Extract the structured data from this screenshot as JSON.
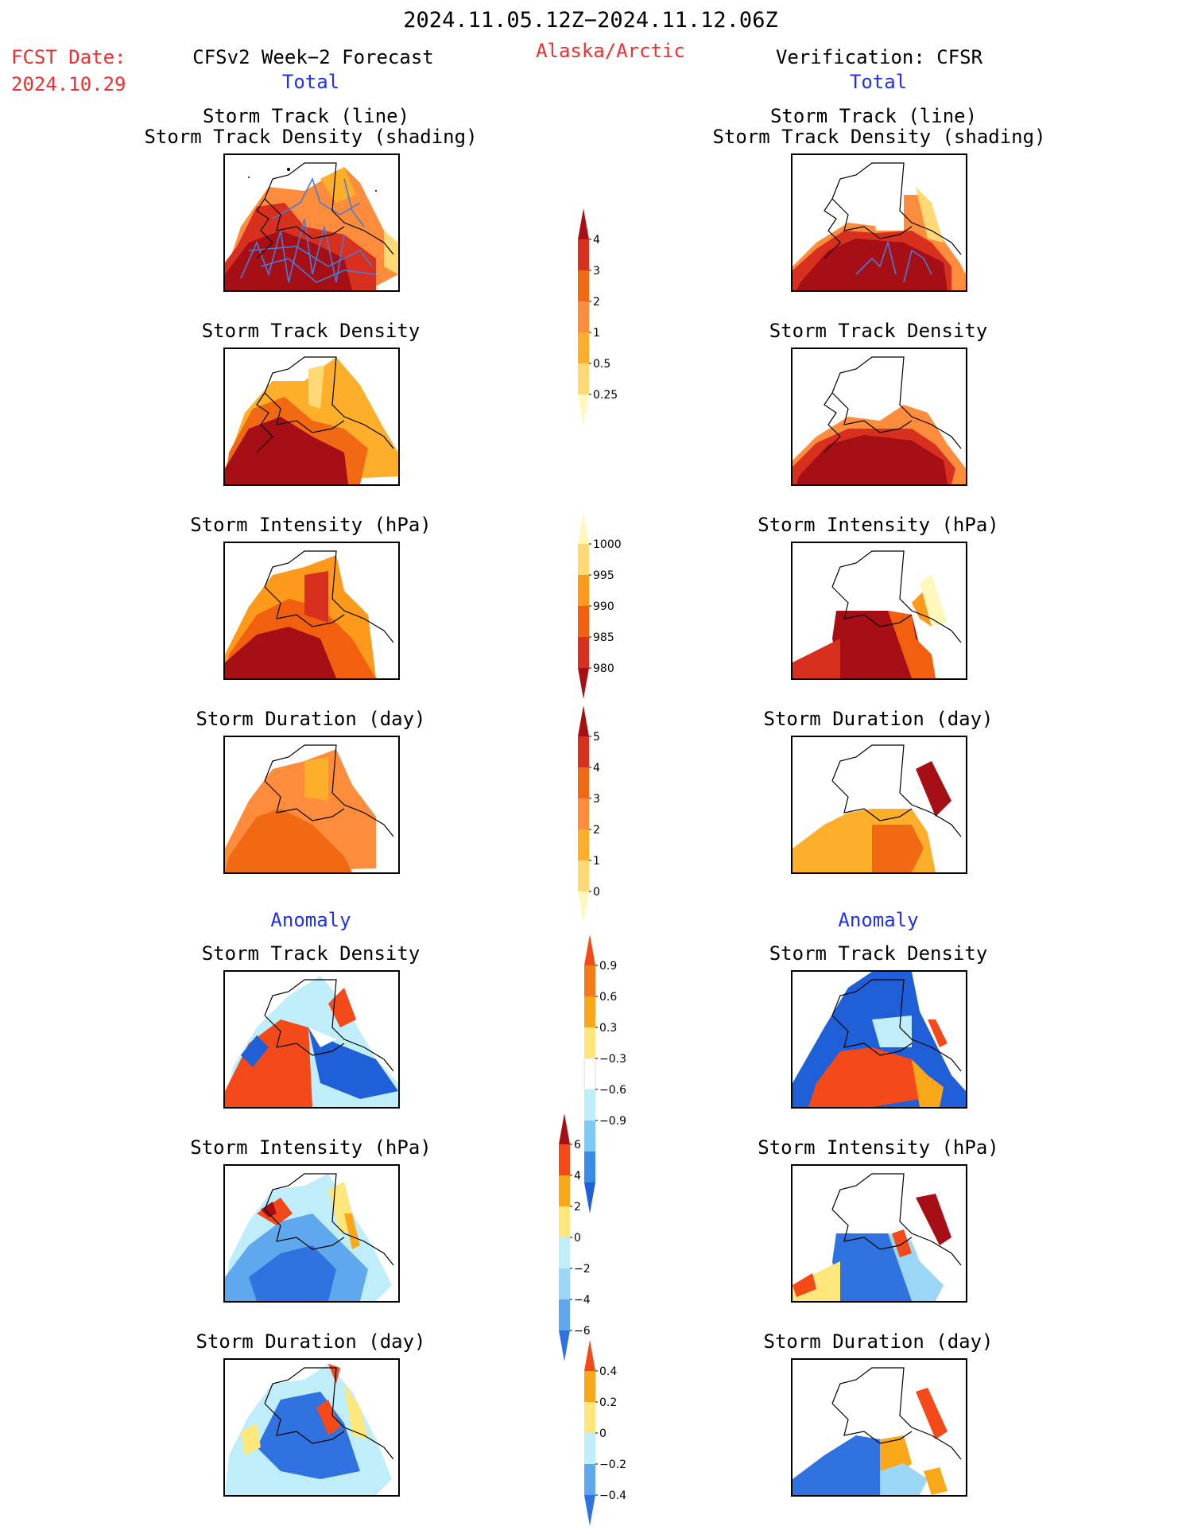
{
  "header": {
    "date_range": "2024.11.05.12Z−2024.11.12.06Z",
    "fcst_label": "FCST Date:",
    "fcst_date": "2024.10.29",
    "forecast_title": "CFSv2 Week−2 Forecast",
    "region": "Alaska/Arctic",
    "verification_title": "Verification: CFSR",
    "total_left": "Total",
    "total_right": "Total",
    "anomaly_left": "Anomaly",
    "anomaly_right": "Anomaly"
  },
  "panels": {
    "track_line": "Storm Track (line)",
    "track_density_shading": "Storm Track Density (shading)",
    "track_density": "Storm Track Density",
    "intensity": "Storm Intensity (hPa)",
    "duration": "Storm Duration (day)"
  },
  "colorbars": {
    "density": {
      "labels": [
        "4",
        "3",
        "2",
        "1",
        "0.5",
        "0.25"
      ],
      "colors": [
        "#a50f15",
        "#d7301f",
        "#f16913",
        "#fd8d3c",
        "#fdae2b",
        "#fed976",
        "#fff7bc"
      ]
    },
    "intensity": {
      "labels": [
        "1000",
        "995",
        "990",
        "985",
        "980"
      ],
      "colors": [
        "#fff7bc",
        "#fed976",
        "#fd9a1c",
        "#f2600f",
        "#d7301f",
        "#a50f15"
      ]
    },
    "duration": {
      "labels": [
        "5",
        "4",
        "3",
        "2",
        "1",
        "0"
      ],
      "colors": [
        "#a50f15",
        "#d7301f",
        "#f16913",
        "#fd8d3c",
        "#fdae2b",
        "#fed976",
        "#fff7bc"
      ]
    },
    "anom_density": {
      "labels": [
        "0.9",
        "0.6",
        "0.3",
        "−0.3",
        "−0.6",
        "−0.9"
      ],
      "colors": [
        "#f44a1a",
        "#f57a1a",
        "#f9a81a",
        "#fde67a",
        "#ffffff",
        "#bfeefa",
        "#7ccaf5",
        "#3a8ae8",
        "#1f5fd8"
      ]
    },
    "anom_intensity": {
      "labels": [
        "6",
        "4",
        "2",
        "0",
        "−2",
        "−4",
        "−6"
      ],
      "colors": [
        "#a50f15",
        "#f44a1a",
        "#f9a81a",
        "#fde67a",
        "#bfeefa",
        "#9cd6f7",
        "#5fa8ee",
        "#2f72e0"
      ]
    },
    "anom_duration": {
      "labels": [
        "0.4",
        "0.2",
        "0",
        "−0.2",
        "−0.4"
      ],
      "colors": [
        "#f44a1a",
        "#f9a81a",
        "#fde67a",
        "#bfeefa",
        "#5fa8ee",
        "#2f72e0"
      ]
    }
  }
}
